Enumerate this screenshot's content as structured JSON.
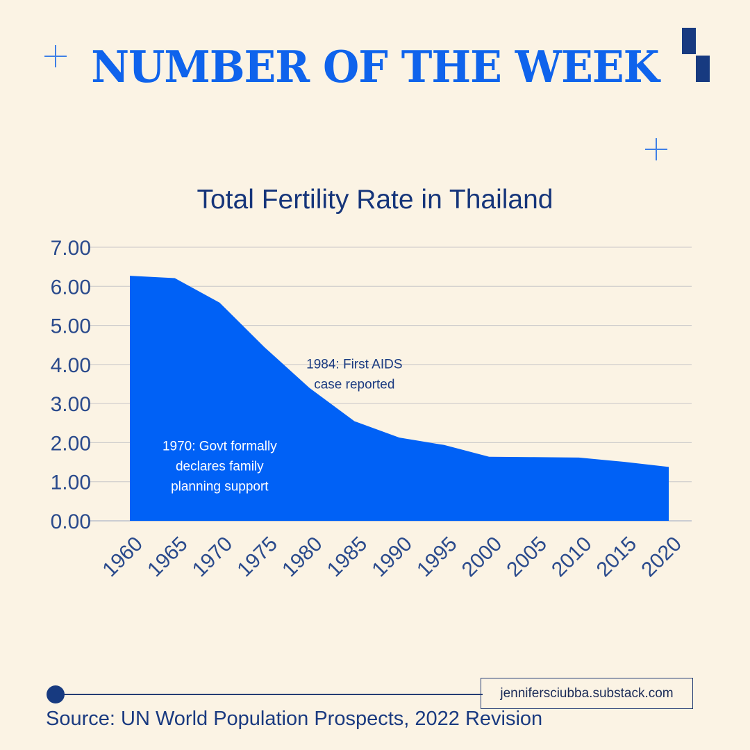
{
  "header": {
    "title": "NUMBER OF THE WEEK"
  },
  "chart_data": {
    "type": "area",
    "title": "Total Fertility Rate in Thailand",
    "xlabel": "",
    "ylabel": "",
    "x": [
      "1960",
      "1965",
      "1970",
      "1975",
      "1980",
      "1985",
      "1990",
      "1995",
      "2000",
      "2005",
      "2010",
      "2015",
      "2020"
    ],
    "values": [
      6.27,
      6.21,
      5.58,
      4.44,
      3.4,
      2.55,
      2.13,
      1.94,
      1.64,
      1.63,
      1.62,
      1.51,
      1.38
    ],
    "yticks": [
      "0.00",
      "1.00",
      "2.00",
      "3.00",
      "4.00",
      "5.00",
      "6.00",
      "7.00"
    ],
    "ylim": [
      0,
      7
    ],
    "grid": true,
    "color": "#0061f6",
    "annotations": [
      {
        "lines": [
          "1970: Govt formally",
          "declares family",
          "planning support"
        ],
        "x": "1970",
        "y": 1.8,
        "color": "#ffffff"
      },
      {
        "lines": [
          "1984: First AIDS",
          "case reported"
        ],
        "x": "1985",
        "y": 3.9,
        "color": "#1a3a80"
      }
    ]
  },
  "footer": {
    "url": "jennifersciubba.substack.com",
    "source": "Source: UN World Population Prospects, 2022 Revision"
  }
}
